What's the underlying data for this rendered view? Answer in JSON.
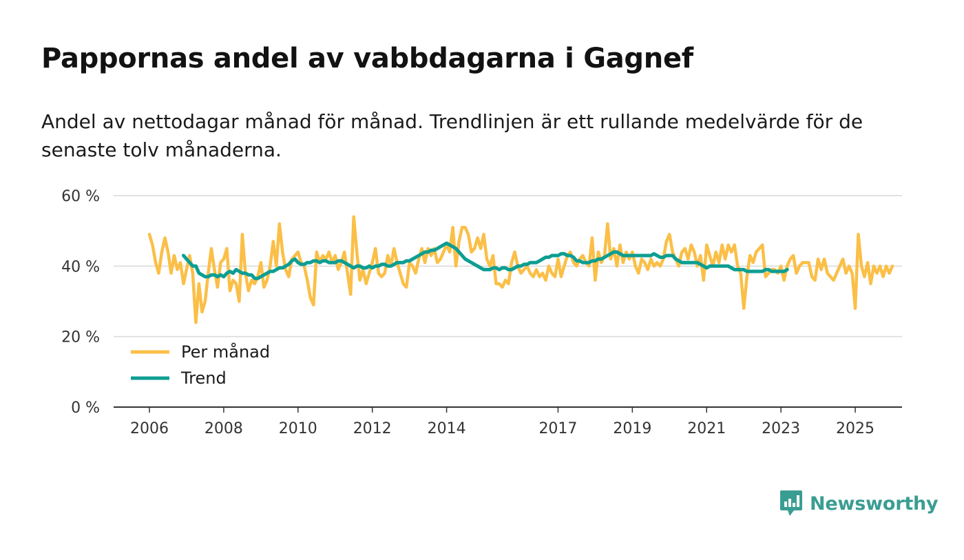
{
  "header": {
    "title": "Pappornas andel av vabbdagarna i Gagnef",
    "subtitle": "Andel av nettodagar månad för månad. Trendlinjen är ett rullande medelvärde för de senaste tolv månaderna."
  },
  "brand": {
    "name": "Newsworthy",
    "icon": "newsworthy-logo-icon",
    "color": "#3a9d92"
  },
  "chart_data": {
    "type": "line",
    "title": "Pappornas andel av vabbdagarna i Gagnef",
    "xlabel": "",
    "ylabel": "",
    "ylim": [
      0,
      60
    ],
    "y_ticks": [
      0,
      20,
      40,
      60
    ],
    "y_tick_labels": [
      "0 %",
      "20 %",
      "40 %",
      "60 %"
    ],
    "x_ticks": [
      2006,
      2008,
      2010,
      2012,
      2014,
      2017,
      2019,
      2021,
      2023,
      2025
    ],
    "x_tick_labels": [
      "2006",
      "2008",
      "2010",
      "2012",
      "2014",
      "2017",
      "2019",
      "2021",
      "2023",
      "2025"
    ],
    "grid": true,
    "legend_position": "bottom-left",
    "series": [
      {
        "name": "Per månad",
        "color": "#fbbf47",
        "start": 2006.0,
        "step_months": 1,
        "values": [
          49,
          46,
          41,
          38,
          44,
          48,
          44,
          38,
          43,
          39,
          41,
          35,
          39,
          43,
          38,
          24,
          35,
          27,
          30,
          38,
          45,
          39,
          34,
          41,
          42,
          45,
          33,
          36,
          35,
          30,
          49,
          38,
          33,
          36,
          35,
          37,
          41,
          34,
          36,
          40,
          47,
          40,
          52,
          44,
          39,
          37,
          42,
          43,
          44,
          41,
          40,
          36,
          31,
          29,
          44,
          41,
          43,
          42,
          44,
          41,
          43,
          39,
          41,
          44,
          38,
          32,
          54,
          44,
          36,
          39,
          35,
          38,
          41,
          45,
          38,
          37,
          38,
          43,
          40,
          45,
          41,
          38,
          35,
          34,
          41,
          40,
          38,
          42,
          45,
          41,
          45,
          43,
          45,
          41,
          42,
          44,
          46,
          44,
          51,
          40,
          47,
          51,
          51,
          49,
          44,
          45,
          48,
          45,
          49,
          42,
          40,
          43,
          35,
          35,
          34,
          36,
          35,
          41,
          44,
          40,
          38,
          39,
          40,
          38,
          37,
          39,
          37,
          38,
          36,
          40,
          38,
          37,
          42,
          37,
          40,
          43,
          44,
          41,
          40,
          42,
          43,
          41,
          40,
          48,
          36,
          44,
          41,
          43,
          52,
          42,
          45,
          40,
          46,
          41,
          44,
          42,
          44,
          40,
          38,
          42,
          41,
          39,
          42,
          40,
          41,
          40,
          42,
          47,
          49,
          44,
          42,
          40,
          44,
          45,
          42,
          46,
          44,
          40,
          43,
          36,
          46,
          43,
          40,
          44,
          41,
          46,
          42,
          46,
          44,
          46,
          40,
          38,
          28,
          37,
          43,
          41,
          44,
          45,
          46,
          37,
          38,
          39,
          39,
          38,
          40,
          36,
          40,
          42,
          43,
          38,
          40,
          41,
          41,
          41,
          37,
          36,
          42,
          39,
          42,
          38,
          37,
          36,
          38,
          40,
          42,
          38,
          40,
          38,
          28,
          49,
          40,
          37,
          41,
          35,
          40,
          38,
          40,
          37,
          40,
          38,
          40
        ]
      },
      {
        "name": "Trend",
        "color": "#0d9e92",
        "start": 2006.917,
        "step_months": 1,
        "values": [
          43,
          42,
          41,
          40,
          40,
          38,
          37.5,
          37,
          37,
          37.5,
          37.5,
          37,
          37.5,
          37,
          38,
          38.5,
          38,
          39,
          38.5,
          38,
          38,
          37.5,
          37.5,
          36.5,
          36.5,
          37,
          37.5,
          38,
          38.5,
          38.5,
          39,
          39.5,
          39.5,
          40,
          40.5,
          41.5,
          42,
          41,
          40.5,
          40.5,
          41,
          41,
          41.5,
          41.5,
          41,
          41.5,
          41.5,
          41,
          41,
          41,
          41.5,
          41.5,
          41,
          40.5,
          40,
          39.5,
          40,
          40,
          39.5,
          39.5,
          40,
          39.5,
          40,
          40,
          40.5,
          40.5,
          40,
          40,
          40.5,
          41,
          41,
          41,
          41.5,
          41.5,
          42,
          42.5,
          43,
          43.5,
          44,
          44,
          44.5,
          44.5,
          45,
          45.5,
          46,
          46.5,
          46,
          45.5,
          45,
          44,
          43,
          42,
          41.5,
          41,
          40.5,
          40,
          39.5,
          39,
          39,
          39,
          39.5,
          39.5,
          39,
          39.5,
          39.5,
          39,
          39,
          39.5,
          40,
          40,
          40.5,
          40.5,
          41,
          41,
          41,
          41.5,
          42,
          42.5,
          42.5,
          43,
          43,
          43,
          43.5,
          43.5,
          43,
          43,
          42.5,
          41.5,
          41.5,
          41,
          41,
          41,
          41.5,
          41.5,
          42,
          42,
          42.5,
          43,
          43.5,
          44,
          44,
          43.5,
          43,
          43,
          43,
          43,
          43,
          43,
          43,
          43,
          43,
          43,
          43.5,
          43,
          42.5,
          42.5,
          43,
          43,
          43,
          42,
          41.5,
          41,
          41,
          41,
          41,
          41,
          41,
          40.5,
          40,
          39.5,
          40,
          40,
          40,
          40,
          40,
          40,
          40,
          39.5,
          39,
          39,
          39,
          39,
          38.5,
          38.5,
          38.5,
          38.5,
          38.5,
          38.5,
          39,
          39,
          38.5,
          38.5,
          38.5,
          38.5,
          38.5,
          39
        ]
      }
    ]
  }
}
